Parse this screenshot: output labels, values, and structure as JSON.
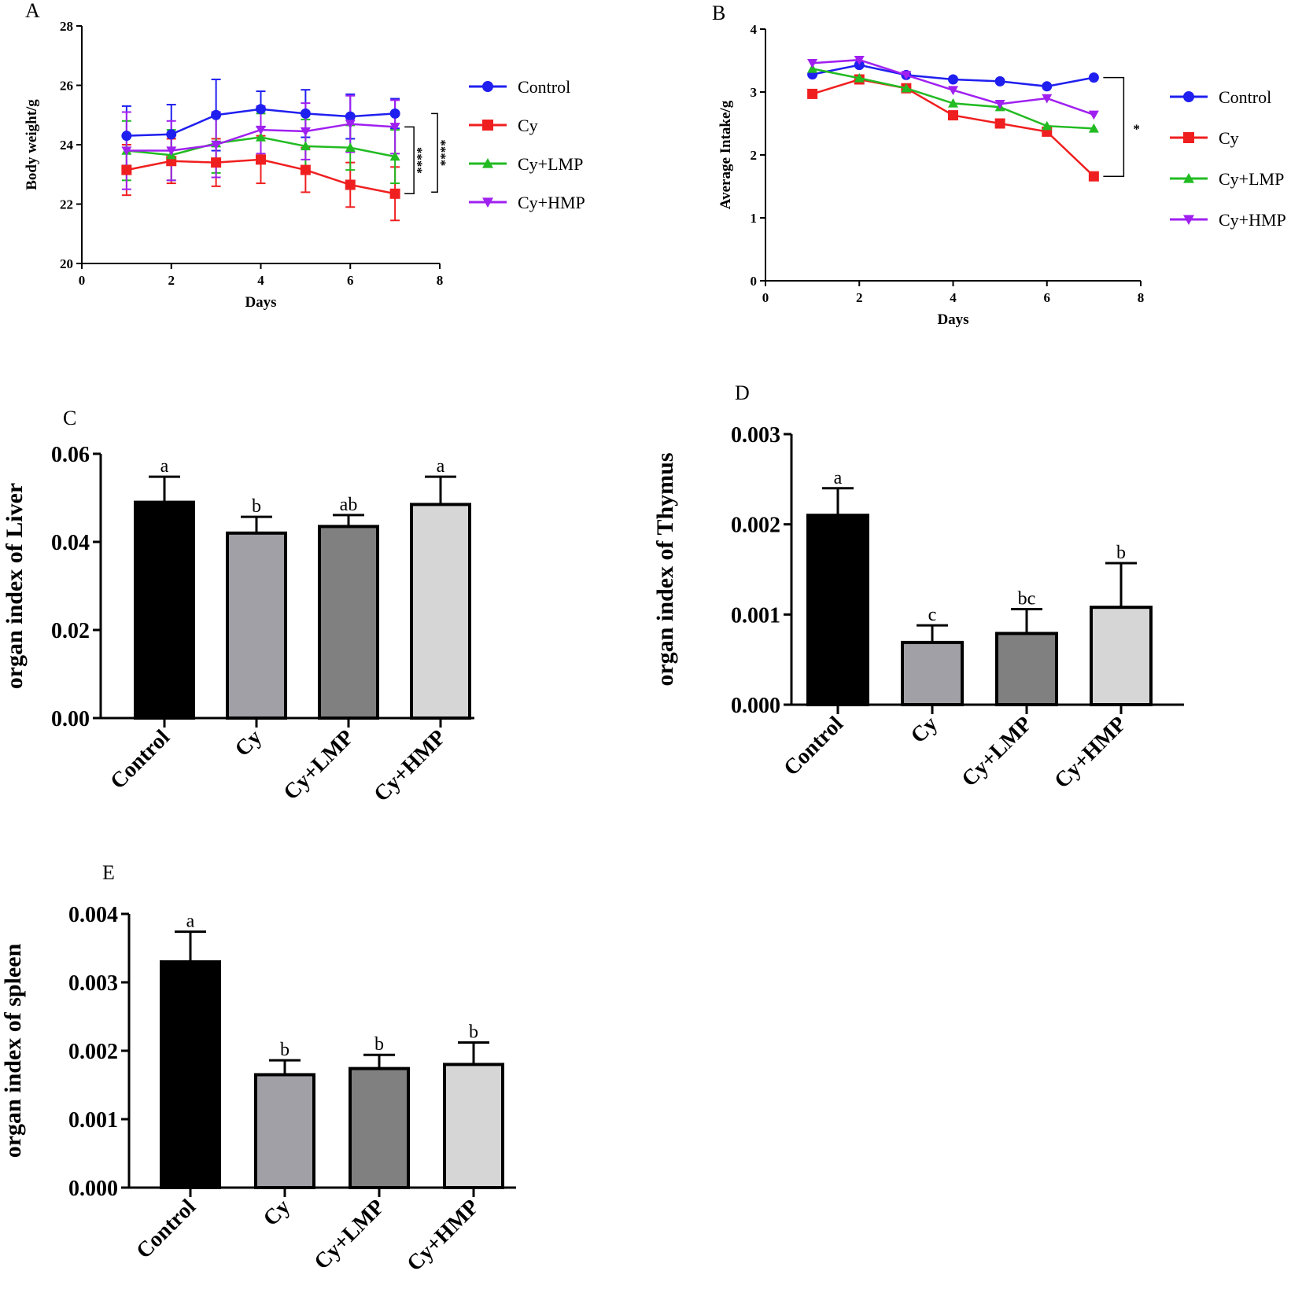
{
  "chart_data": [
    {
      "panel": "A",
      "type": "line",
      "title": "",
      "xlabel": "Days",
      "ylabel": "Body weight/g",
      "xlim": [
        0,
        8
      ],
      "ylim": [
        20,
        28
      ],
      "xticks": [
        0,
        2,
        4,
        6,
        8
      ],
      "yticks": [
        20,
        22,
        24,
        26,
        28
      ],
      "x": [
        1,
        2,
        3,
        4,
        5,
        6,
        7
      ],
      "series": [
        {
          "name": "Control",
          "color": "#1f1ff0",
          "marker": "circle",
          "values": [
            24.3,
            24.35,
            25.0,
            25.2,
            25.05,
            24.95,
            25.05
          ],
          "errors": [
            1.0,
            1.0,
            1.2,
            0.6,
            0.8,
            0.75,
            0.5
          ]
        },
        {
          "name": "Cy",
          "color": "#f01f1f",
          "marker": "square",
          "values": [
            23.15,
            23.45,
            23.4,
            23.5,
            23.15,
            22.65,
            22.35
          ],
          "errors": [
            0.85,
            0.75,
            0.8,
            0.8,
            0.75,
            0.75,
            0.9
          ]
        },
        {
          "name": "Cy+LMP",
          "color": "#22bb22",
          "marker": "triangle-up",
          "values": [
            23.8,
            23.65,
            24.05,
            24.25,
            23.95,
            23.9,
            23.6
          ],
          "errors": [
            1.0,
            0.85,
            1.0,
            0.8,
            0.9,
            0.75,
            0.9
          ]
        },
        {
          "name": "Cy+HMP",
          "color": "#a020f0",
          "marker": "triangle-down",
          "values": [
            23.8,
            23.8,
            24.0,
            24.5,
            24.45,
            24.7,
            24.6
          ],
          "errors": [
            1.3,
            1.0,
            1.1,
            0.8,
            0.95,
            0.95,
            0.9
          ]
        }
      ],
      "significance": [
        "****",
        "****"
      ]
    },
    {
      "panel": "B",
      "type": "line",
      "title": "",
      "xlabel": "Days",
      "ylabel": "Average Intake/g",
      "xlim": [
        0,
        8
      ],
      "ylim": [
        0,
        4
      ],
      "xticks": [
        0,
        2,
        4,
        6,
        8
      ],
      "yticks": [
        0,
        1,
        2,
        3,
        4
      ],
      "x": [
        1,
        2,
        3,
        4,
        5,
        6,
        7
      ],
      "series": [
        {
          "name": "Control",
          "color": "#1f1ff0",
          "marker": "circle",
          "values": [
            3.28,
            3.43,
            3.27,
            3.2,
            3.17,
            3.09,
            3.23
          ]
        },
        {
          "name": "Cy",
          "color": "#f01f1f",
          "marker": "square",
          "values": [
            2.97,
            3.2,
            3.06,
            2.63,
            2.5,
            2.37,
            1.66
          ]
        },
        {
          "name": "Cy+LMP",
          "color": "#22bb22",
          "marker": "triangle-up",
          "values": [
            3.37,
            3.22,
            3.06,
            2.82,
            2.76,
            2.46,
            2.42
          ]
        },
        {
          "name": "Cy+HMP",
          "color": "#a020f0",
          "marker": "triangle-down",
          "values": [
            3.46,
            3.51,
            3.27,
            3.03,
            2.81,
            2.9,
            2.64
          ]
        }
      ],
      "significance": [
        "*"
      ]
    },
    {
      "panel": "C",
      "type": "bar",
      "title": "",
      "xlabel": "",
      "ylabel": "organ index of Liver",
      "ylim": [
        0,
        0.06
      ],
      "yticks": [
        0,
        0.02,
        0.04,
        0.06
      ],
      "ytick_labels": [
        "0.00",
        "0.02",
        "0.04",
        "0.06"
      ],
      "categories": [
        "Control",
        "Cy",
        "Cy+LMP",
        "Cy+HMP"
      ],
      "values": [
        0.049,
        0.042,
        0.0435,
        0.0485
      ],
      "errors": [
        0.0058,
        0.0037,
        0.0026,
        0.0063
      ],
      "letters": [
        "a",
        "b",
        "ab",
        "a"
      ],
      "colors": [
        "#000000",
        "#a0a0a6",
        "#808080",
        "#d6d6d6"
      ]
    },
    {
      "panel": "D",
      "type": "bar",
      "title": "",
      "xlabel": "",
      "ylabel": "organ index of Thymus",
      "ylim": [
        0,
        0.003
      ],
      "yticks": [
        0,
        0.001,
        0.002,
        0.003
      ],
      "ytick_labels": [
        "0.000",
        "0.001",
        "0.002",
        "0.003"
      ],
      "categories": [
        "Control",
        "Cy",
        "Cy+LMP",
        "Cy+HMP"
      ],
      "values": [
        0.0021,
        0.00069,
        0.00079,
        0.00108
      ],
      "errors": [
        0.0003,
        0.00019,
        0.00027,
        0.00049
      ],
      "letters": [
        "a",
        "c",
        "bc",
        "b"
      ],
      "colors": [
        "#000000",
        "#a0a0a6",
        "#808080",
        "#d6d6d6"
      ]
    },
    {
      "panel": "E",
      "type": "bar",
      "title": "",
      "xlabel": "",
      "ylabel": "organ index of spleen",
      "ylim": [
        0,
        0.004
      ],
      "yticks": [
        0,
        0.001,
        0.002,
        0.003,
        0.004
      ],
      "ytick_labels": [
        "0.000",
        "0.001",
        "0.002",
        "0.003",
        "0.004"
      ],
      "categories": [
        "Control",
        "Cy",
        "Cy+LMP",
        "Cy+HMP"
      ],
      "values": [
        0.0033,
        0.00165,
        0.00174,
        0.0018
      ],
      "errors": [
        0.00044,
        0.00021,
        0.0002,
        0.00032
      ],
      "letters": [
        "a",
        "b",
        "b",
        "b"
      ],
      "colors": [
        "#000000",
        "#a0a0a6",
        "#808080",
        "#d6d6d6"
      ]
    }
  ]
}
